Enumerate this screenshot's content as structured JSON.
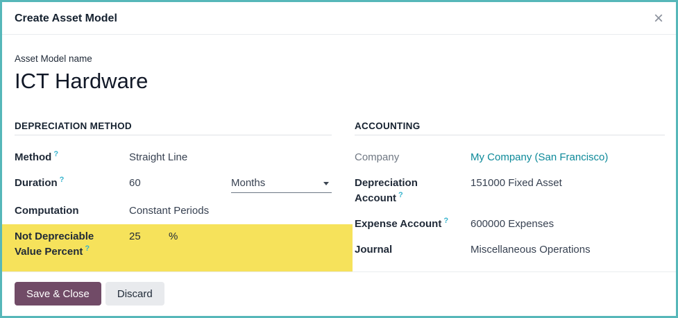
{
  "dialog": {
    "title": "Create Asset Model",
    "close_icon": "×"
  },
  "name_field": {
    "label": "Asset Model name",
    "value": "ICT Hardware"
  },
  "depreciation": {
    "title": "DEPRECIATION METHOD",
    "method": {
      "label": "Method",
      "help": "?",
      "value": "Straight Line"
    },
    "duration": {
      "label": "Duration",
      "help": "?",
      "value": "60",
      "unit": "Months"
    },
    "computation": {
      "label": "Computation",
      "value": "Constant Periods"
    },
    "not_depreciable": {
      "label": "Not Depreciable Value Percent",
      "help": "?",
      "value": "25",
      "unit": "%"
    }
  },
  "accounting": {
    "title": "ACCOUNTING",
    "company": {
      "label": "Company",
      "value": "My Company (San Francisco)"
    },
    "depreciation_account": {
      "label": "Depreciation Account",
      "help": "?",
      "value": "151000 Fixed Asset"
    },
    "expense_account": {
      "label": "Expense Account",
      "help": "?",
      "value": "600000 Expenses"
    },
    "journal": {
      "label": "Journal",
      "value": "Miscellaneous Operations"
    }
  },
  "footer": {
    "save_label": "Save & Close",
    "discard_label": "Discard"
  },
  "colors": {
    "modal_border": "#56b7b9",
    "primary_button": "#714b67",
    "highlight": "#f6e25b",
    "link": "#0c8999",
    "help_marker": "#36b3cd"
  }
}
